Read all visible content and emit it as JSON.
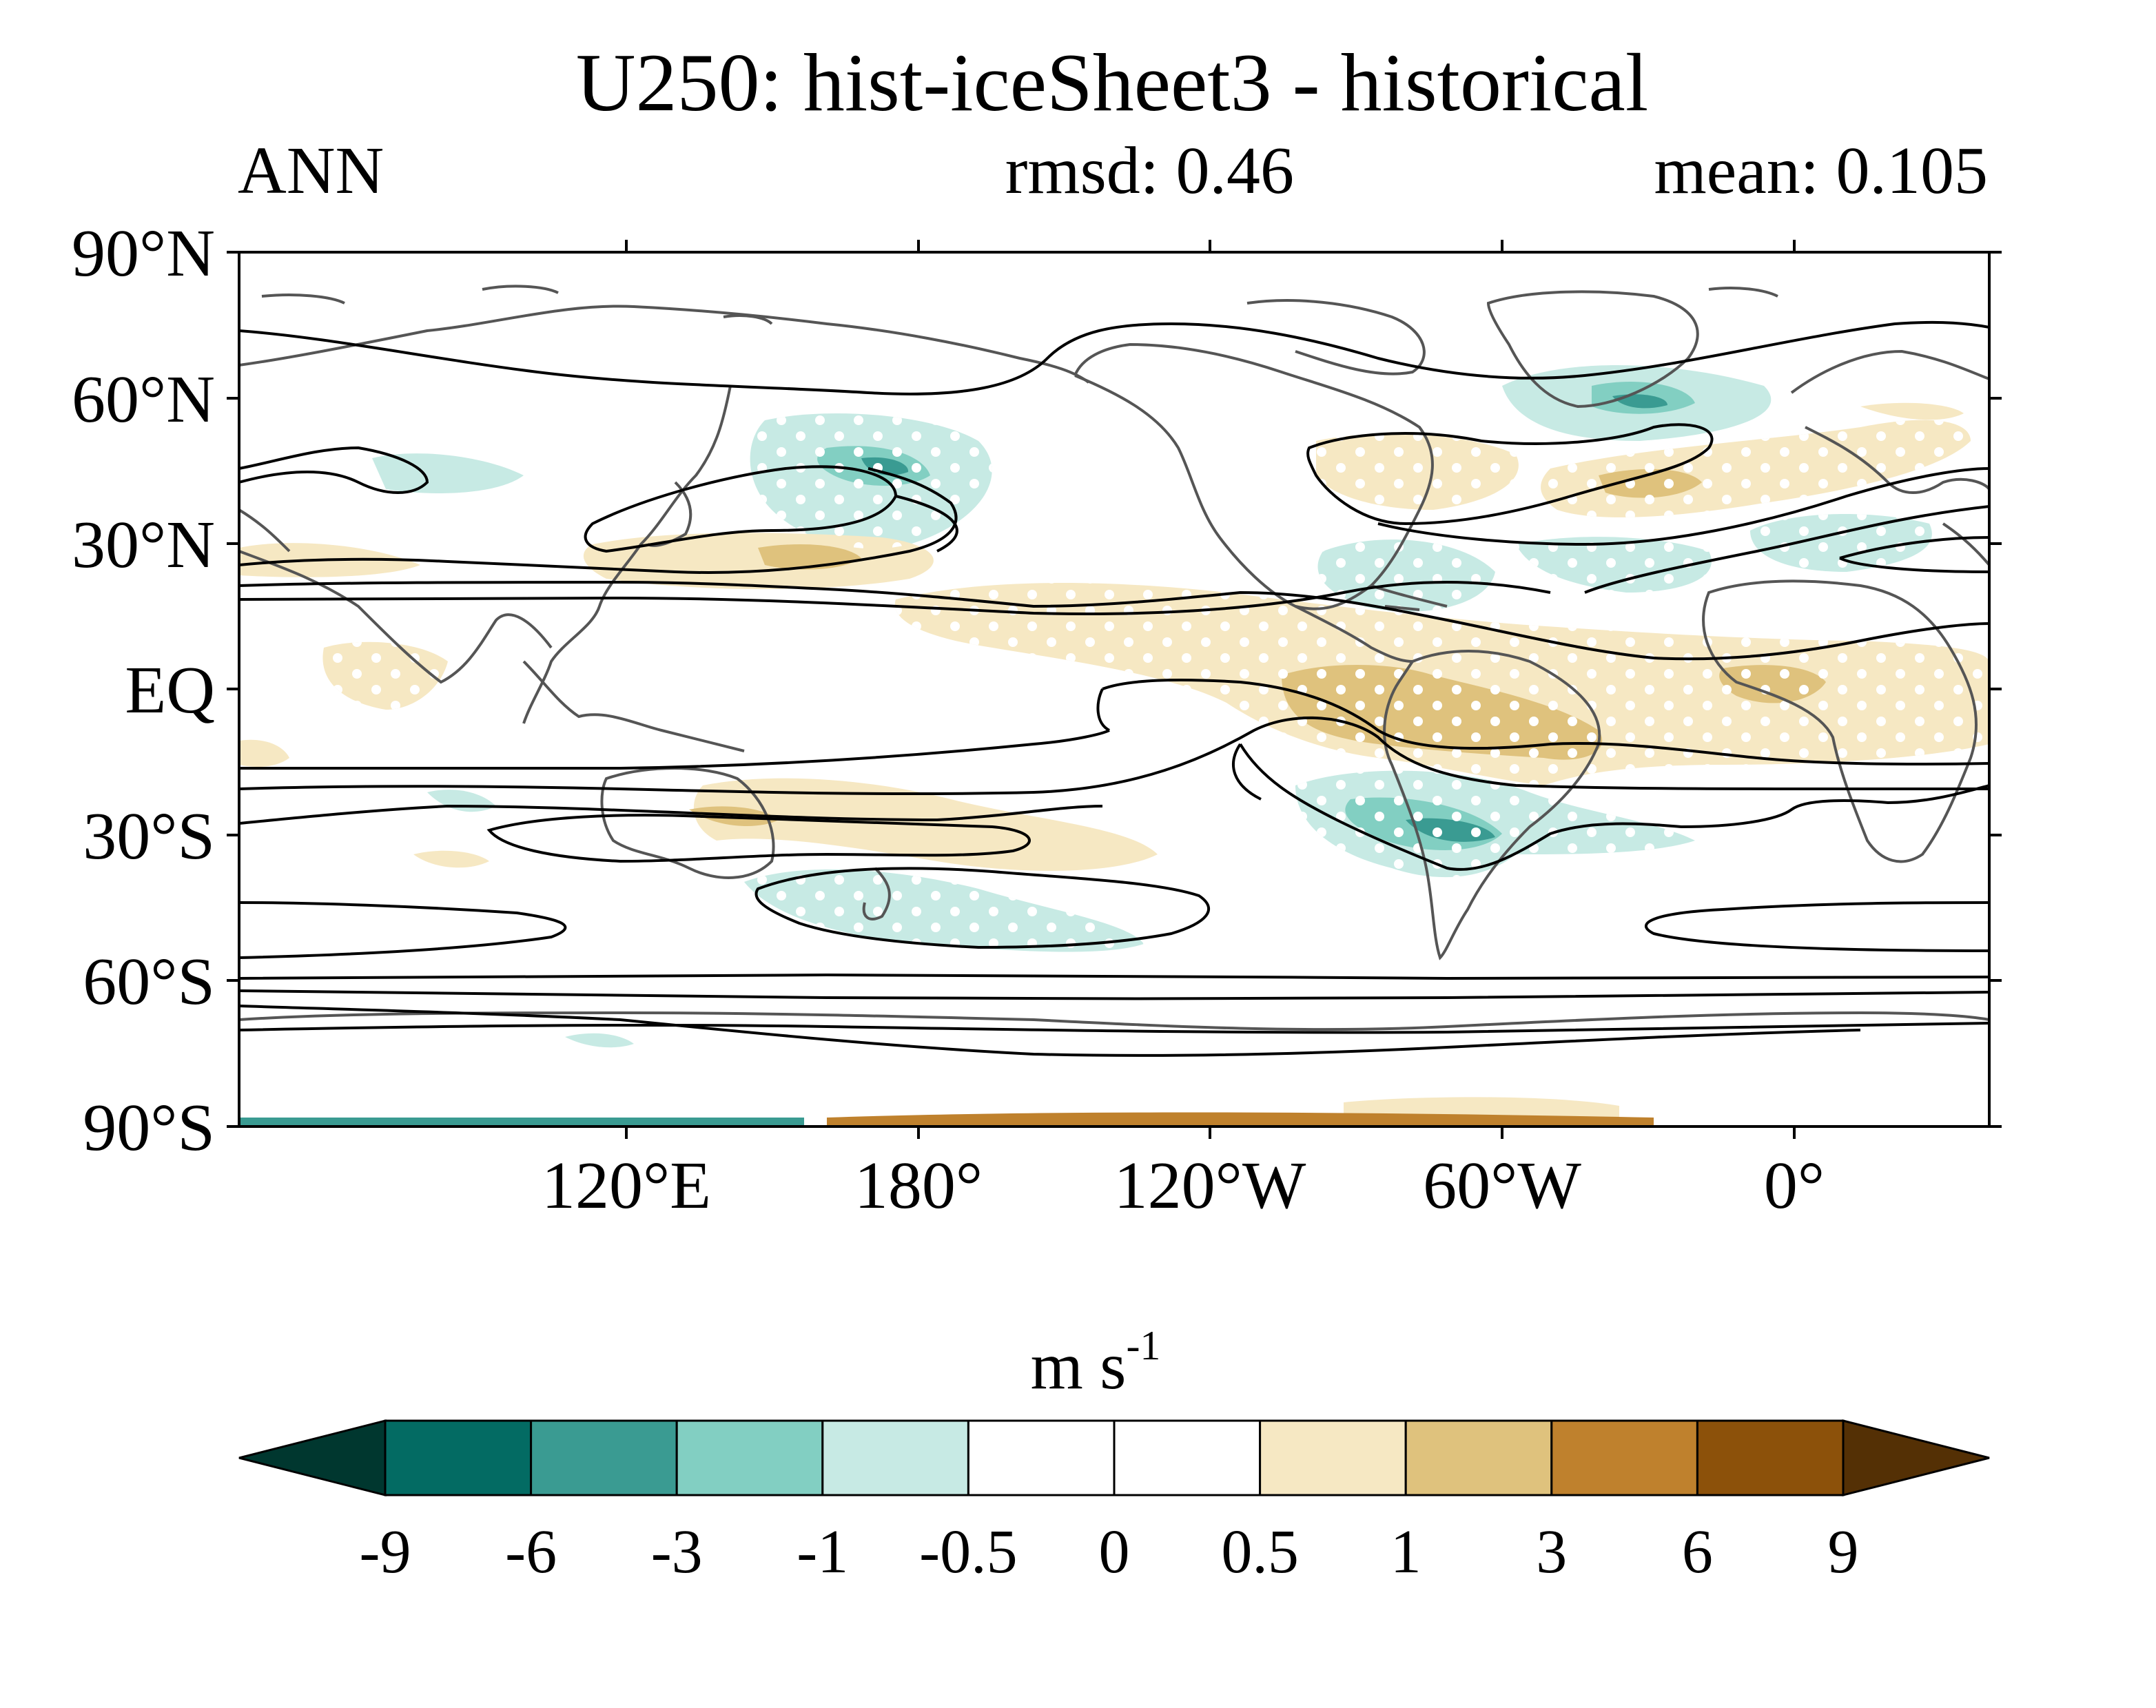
{
  "title": "U250: hist-iceSheet3 - historical",
  "stats": {
    "season": "ANN",
    "rmsd": "rmsd: 0.46",
    "mean": "mean: 0.105"
  },
  "map": {
    "lat_labels": [
      "90°N",
      "60°N",
      "30°N",
      "EQ",
      "30°S",
      "60°S",
      "90°S"
    ],
    "lon_labels": [
      "120°E",
      "180°",
      "120°W",
      "60°W",
      "0°"
    ]
  },
  "colorbar": {
    "units_base": "m s",
    "units_exp": "-1",
    "tick_labels": [
      "-9",
      "-6",
      "-3",
      "-1",
      "-0.5",
      "0",
      "0.5",
      "1",
      "3",
      "6",
      "9"
    ],
    "colors": [
      "#00372f",
      "#036b63",
      "#3a9b92",
      "#82cfc2",
      "#c7eae4",
      "#ffffff",
      "#ffffff",
      "#f6e8c3",
      "#dfc27d",
      "#bf812d",
      "#8c510a",
      "#543005"
    ]
  }
}
